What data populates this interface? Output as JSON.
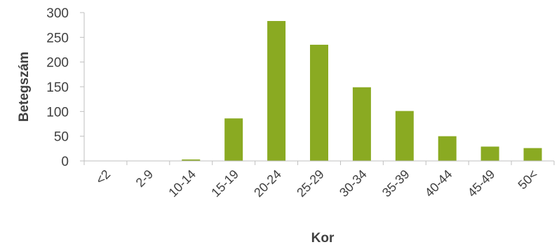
{
  "chart_data": {
    "type": "bar",
    "title": "",
    "xlabel": "Kor",
    "ylabel": "Betegszám",
    "categories": [
      "<2",
      "2-9",
      "10-14",
      "15-19",
      "20-24",
      "25-29",
      "30-34",
      "35-39",
      "40-44",
      "45-49",
      "50<"
    ],
    "values": [
      0,
      0,
      3,
      86,
      283,
      235,
      149,
      101,
      50,
      29,
      26
    ],
    "ylim": [
      0,
      300
    ],
    "yticks": [
      0,
      50,
      100,
      150,
      200,
      250,
      300
    ],
    "grid": false,
    "legend": "none",
    "colors": {
      "bar": "#8aaa22",
      "axis": "#bfbfbf",
      "text": "#404040"
    }
  }
}
